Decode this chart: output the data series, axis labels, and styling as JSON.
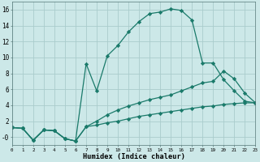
{
  "xlabel": "Humidex (Indice chaleur)",
  "bg_color": "#cce8e8",
  "grid_color": "#aacccc",
  "line_color": "#1a7a6a",
  "series": [
    {
      "x": [
        0,
        1,
        2,
        3,
        4,
        5,
        6,
        7,
        8,
        9,
        10,
        11,
        12,
        13,
        14,
        15,
        16,
        17,
        18,
        19,
        20,
        21,
        22,
        23
      ],
      "y": [
        1.2,
        1.1,
        -0.4,
        0.9,
        0.8,
        -0.2,
        -0.5,
        9.2,
        5.8,
        10.2,
        11.5,
        13.2,
        14.5,
        15.5,
        15.7,
        16.1,
        15.9,
        14.7,
        9.3,
        9.3,
        7.2,
        5.8,
        4.5,
        4.3
      ]
    },
    {
      "x": [
        0,
        1,
        2,
        3,
        4,
        5,
        6,
        7,
        8,
        9,
        10,
        11,
        12,
        13,
        14,
        15,
        16,
        17,
        18,
        19,
        20,
        21,
        22,
        23
      ],
      "y": [
        1.2,
        1.1,
        -0.4,
        0.9,
        0.8,
        -0.2,
        -0.5,
        1.3,
        2.0,
        2.8,
        3.4,
        3.9,
        4.3,
        4.7,
        5.0,
        5.3,
        5.8,
        6.3,
        6.8,
        7.0,
        8.3,
        7.3,
        5.5,
        4.3
      ]
    },
    {
      "x": [
        0,
        1,
        2,
        3,
        4,
        5,
        6,
        7,
        8,
        9,
        10,
        11,
        12,
        13,
        14,
        15,
        16,
        17,
        18,
        19,
        20,
        21,
        22,
        23
      ],
      "y": [
        1.2,
        1.1,
        -0.4,
        0.9,
        0.8,
        -0.2,
        -0.5,
        1.3,
        1.5,
        1.8,
        2.0,
        2.3,
        2.6,
        2.8,
        3.0,
        3.2,
        3.4,
        3.6,
        3.8,
        3.9,
        4.1,
        4.2,
        4.3,
        4.3
      ]
    }
  ],
  "xlim": [
    0,
    23
  ],
  "ylim": [
    -1.0,
    17.0
  ],
  "xtick_labels": [
    "0",
    "1",
    "2",
    "3",
    "4",
    "5",
    "6",
    "7",
    "8",
    "9",
    "10",
    "11",
    "12",
    "13",
    "14",
    "15",
    "16",
    "17",
    "18",
    "19",
    "20",
    "21",
    "22",
    "23"
  ],
  "ytick_vals": [
    0,
    2,
    4,
    6,
    8,
    10,
    12,
    14,
    16
  ],
  "ytick_labels": [
    "-0",
    "2",
    "4",
    "6",
    "8",
    "10",
    "12",
    "14",
    "16"
  ],
  "marker": "D",
  "markersize": 2.2,
  "linewidth": 0.9
}
